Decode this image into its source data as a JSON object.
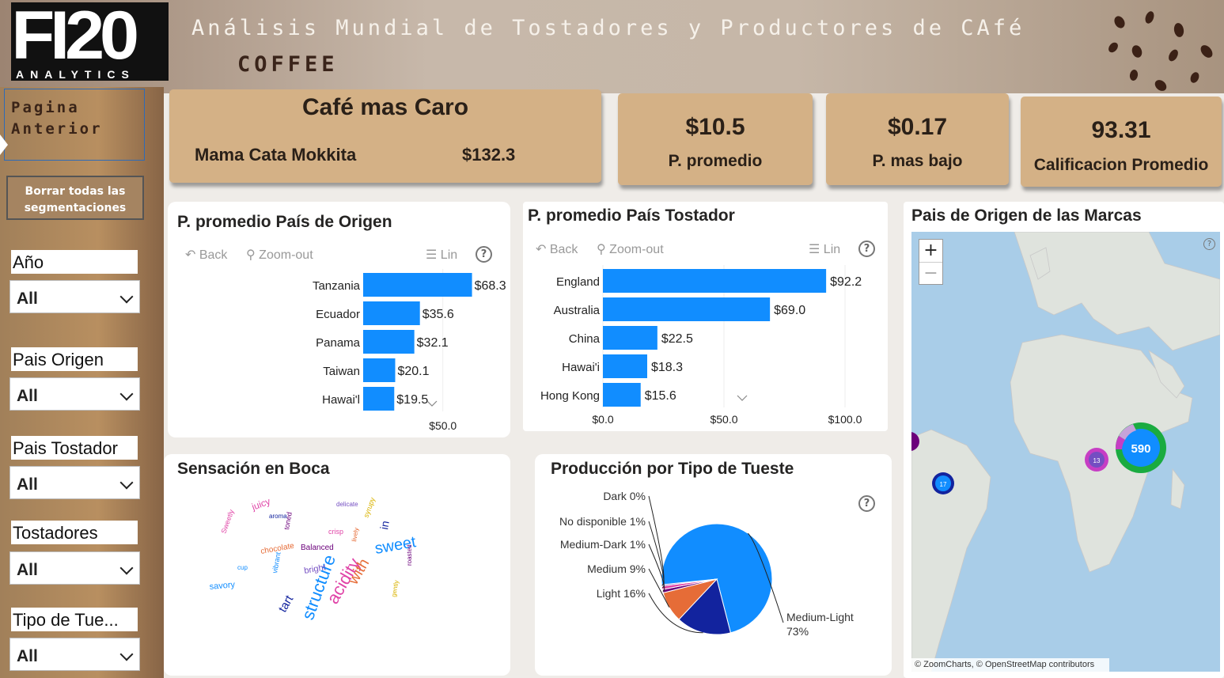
{
  "header": {
    "logo_big": "FI20",
    "logo_small": "ANALYTICS",
    "title": "Análisis Mundial de Tostadores y Productores de CAfé",
    "subtitle": "COFFEE"
  },
  "sidebar": {
    "prev_label_1": "Pagina",
    "prev_label_2": "Anterior",
    "clear_label_1": "Borrar todas las",
    "clear_label_2": "segmentaciones",
    "slicers": [
      {
        "label": "Año",
        "value": "All"
      },
      {
        "label": "Pais Origen",
        "value": "All"
      },
      {
        "label": "Pais Tostador",
        "value": "All"
      },
      {
        "label": "Tostadores",
        "value": "All"
      },
      {
        "label": "Tipo de Tue...",
        "value": "All"
      }
    ]
  },
  "cards": {
    "expensive": {
      "title": "Café mas Caro",
      "name": "Mama Cata Mokkita",
      "value": "$132.3"
    },
    "avg_price": {
      "value": "$10.5",
      "label": "P. promedio"
    },
    "min_price": {
      "value": "$0.17",
      "label": "P. mas bajo"
    },
    "avg_rating": {
      "value": "93.31",
      "label": "Calificacion Promedio"
    }
  },
  "toolbar": {
    "back": "Back",
    "zoomout": "Zoom-out",
    "lin": "Lin"
  },
  "chart_data": [
    {
      "type": "bar",
      "title": "P. promedio País de Origen",
      "orientation": "horizontal",
      "categories": [
        "Tanzania",
        "Ecuador",
        "Panama",
        "Taiwan",
        "Hawai'l"
      ],
      "values": [
        68.3,
        35.6,
        32.1,
        20.1,
        19.5
      ],
      "value_labels": [
        "$68.3",
        "$35.6",
        "$32.1",
        "$20.1",
        "$19.5"
      ],
      "xticks": [
        "$50.0"
      ],
      "xlim": [
        0,
        70
      ],
      "color": "#118dff"
    },
    {
      "type": "bar",
      "title": "P. promedio País Tostador",
      "orientation": "horizontal",
      "categories": [
        "England",
        "Australia",
        "China",
        "Hawai'i",
        "Hong Kong"
      ],
      "values": [
        92.2,
        69.0,
        22.5,
        18.3,
        15.6
      ],
      "value_labels": [
        "$92.2",
        "$69.0",
        "$22.5",
        "$18.3",
        "$15.6"
      ],
      "xticks": [
        "$0.0",
        "$50.0",
        "$100.0"
      ],
      "xlim": [
        0,
        100
      ],
      "color": "#118dff"
    },
    {
      "type": "pie",
      "title": "Producción por Tipo de Tueste",
      "categories": [
        "Medium-Light",
        "Light",
        "Medium",
        "Medium-Dark",
        "No disponible",
        "Dark"
      ],
      "values": [
        73,
        16,
        9,
        1,
        1,
        0
      ],
      "labels": [
        "Medium-Light 73%",
        "Light 16%",
        "Medium 9%",
        "Medium-Dark 1%",
        "No disponible 1%",
        "Dark 0%"
      ],
      "colors": [
        "#118dff",
        "#12239e",
        "#e66c37",
        "#6b007b",
        "#e044a7",
        "#744ec2"
      ]
    }
  ],
  "wordcloud": {
    "title": "Sensación en Boca",
    "words": [
      {
        "t": "structure",
        "s": 22,
        "c": "#118dff"
      },
      {
        "t": "acidity",
        "s": 22,
        "c": "#e044a7"
      },
      {
        "t": "sweet",
        "s": 20,
        "c": "#118dff"
      },
      {
        "t": "with",
        "s": 19,
        "c": "#e66c37"
      },
      {
        "t": "tart",
        "s": 15,
        "c": "#12239e"
      },
      {
        "t": "juicy",
        "s": 12,
        "c": "#e044a7"
      },
      {
        "t": "Balanced",
        "s": 10,
        "c": "#6b007b"
      },
      {
        "t": "bright",
        "s": 11,
        "c": "#744ec2"
      },
      {
        "t": "savory",
        "s": 11,
        "c": "#118dff"
      },
      {
        "t": "in",
        "s": 14,
        "c": "#12239e"
      },
      {
        "t": "chocolate",
        "s": 10,
        "c": "#e66c37"
      },
      {
        "t": "syrupy",
        "s": 9,
        "c": "#d9b300"
      },
      {
        "t": "toned",
        "s": 9,
        "c": "#6b007b"
      },
      {
        "t": "crisp",
        "s": 9,
        "c": "#e044a7"
      },
      {
        "t": "vibrant",
        "s": 9,
        "c": "#118dff"
      },
      {
        "t": "aroma",
        "s": 8,
        "c": "#12239e"
      },
      {
        "t": "delicate",
        "s": 8,
        "c": "#744ec2"
      },
      {
        "t": "gently",
        "s": 8,
        "c": "#d9b300"
      },
      {
        "t": "lively",
        "s": 8,
        "c": "#e66c37"
      },
      {
        "t": "Sweetly",
        "s": 9,
        "c": "#e044a7"
      },
      {
        "t": "cup",
        "s": 8,
        "c": "#118dff"
      },
      {
        "t": "roasted",
        "s": 8,
        "c": "#6b007b"
      }
    ]
  },
  "map": {
    "title": "Pais de Origen de las Marcas",
    "zoom_in": "+",
    "zoom_out": "−",
    "attribution": "© ZoomCharts, © OpenStreetMap contributors",
    "bubbles": [
      {
        "label": "590",
        "color": "#118dff"
      },
      {
        "label": "13",
        "color": "#744ec2"
      },
      {
        "label": "17",
        "color": "#118dff"
      }
    ]
  }
}
